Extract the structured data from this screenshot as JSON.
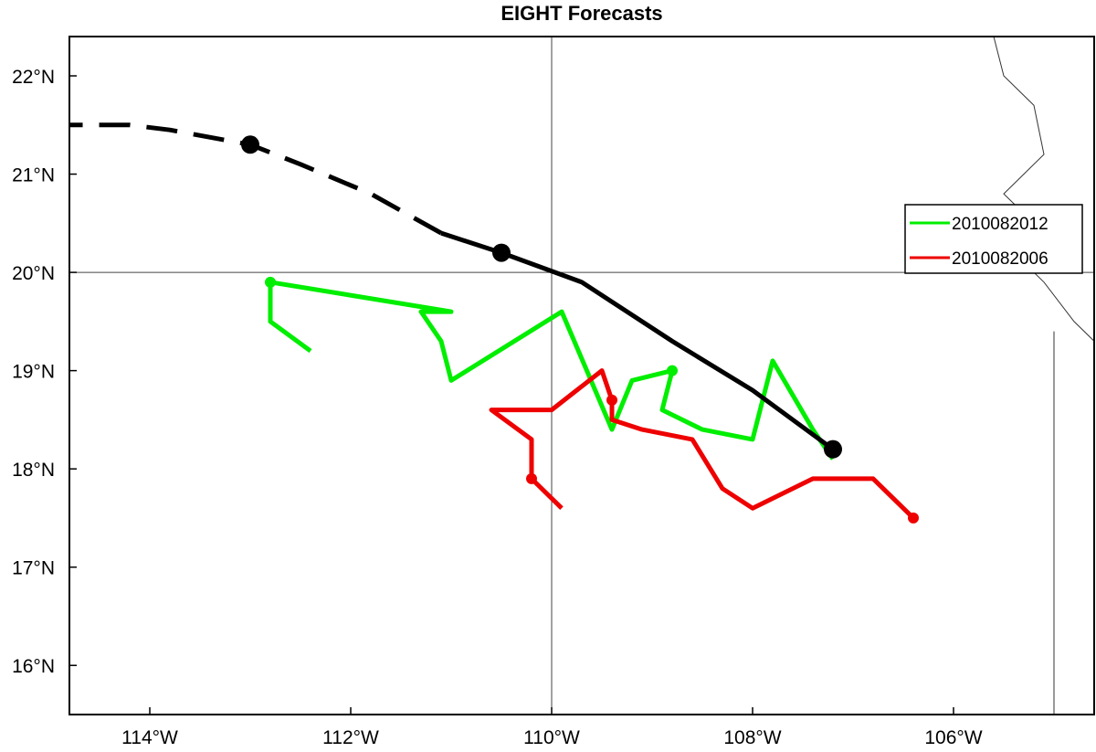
{
  "title": "EIGHT Forecasts",
  "axes": {
    "lon_range": [
      -114.8,
      -104.6
    ],
    "lat_range": [
      15.5,
      22.4
    ],
    "x_ticks": [
      {
        "value": -114,
        "label": "114°W"
      },
      {
        "value": -112,
        "label": "112°W"
      },
      {
        "value": -110,
        "label": "110°W"
      },
      {
        "value": -108,
        "label": "108°W"
      },
      {
        "value": -106,
        "label": "106°W"
      }
    ],
    "y_ticks": [
      {
        "value": 22,
        "label": "22°N"
      },
      {
        "value": 21,
        "label": "21°N"
      },
      {
        "value": 20,
        "label": "20°N"
      },
      {
        "value": 19,
        "label": "19°N"
      },
      {
        "value": 18,
        "label": "18°N"
      },
      {
        "value": 17,
        "label": "17°N"
      },
      {
        "value": 16,
        "label": "16°N"
      }
    ],
    "gridlines": {
      "lon": [
        -110
      ],
      "lat": [
        20
      ],
      "color": "#444444"
    }
  },
  "legend": {
    "placement": "right",
    "entries": [
      {
        "label": "2010082012",
        "color": "#00ee00"
      },
      {
        "label": "2010082006",
        "color": "#ee0000"
      }
    ]
  },
  "chart_data": {
    "type": "line",
    "title": "EIGHT Forecasts",
    "xlabel": "",
    "ylabel": "",
    "xlim": [
      -114.8,
      -104.6
    ],
    "ylim": [
      15.5,
      22.4
    ],
    "series": [
      {
        "color": "#000000",
        "style": "solid",
        "points": [
          [
            -107.2,
            18.2
          ],
          [
            -108.0,
            18.8
          ],
          [
            -108.8,
            19.3
          ],
          [
            -109.7,
            19.9
          ],
          [
            -110.5,
            20.2
          ],
          [
            -111.1,
            20.4
          ]
        ],
        "markers": [
          [
            -107.2,
            18.2
          ],
          [
            -110.5,
            20.2
          ]
        ]
      },
      {
        "color": "#000000",
        "style": "dashed",
        "points": [
          [
            -111.1,
            20.4
          ],
          [
            -111.8,
            20.8
          ],
          [
            -112.5,
            21.1
          ],
          [
            -113.0,
            21.3
          ],
          [
            -113.8,
            21.45
          ],
          [
            -114.2,
            21.5
          ],
          [
            -114.8,
            21.5
          ]
        ],
        "markers": [
          [
            -113.0,
            21.3
          ]
        ]
      },
      {
        "name": "2010082012",
        "color": "#00ee00",
        "style": "solid",
        "points": [
          [
            -112.4,
            19.2
          ],
          [
            -112.8,
            19.5
          ],
          [
            -112.8,
            19.9
          ],
          [
            -111.0,
            19.6
          ],
          [
            -111.3,
            19.6
          ],
          [
            -111.1,
            19.3
          ],
          [
            -111.0,
            18.9
          ],
          [
            -109.9,
            19.6
          ],
          [
            -109.4,
            18.4
          ],
          [
            -109.2,
            18.9
          ],
          [
            -108.8,
            19.0
          ],
          [
            -108.9,
            18.6
          ],
          [
            -108.5,
            18.4
          ],
          [
            -108.0,
            18.3
          ],
          [
            -107.8,
            19.1
          ],
          [
            -107.4,
            18.4
          ],
          [
            -107.2,
            18.1
          ]
        ],
        "markers": [
          [
            -112.8,
            19.9
          ],
          [
            -108.8,
            19.0
          ]
        ]
      },
      {
        "name": "2010082006",
        "color": "#ee0000",
        "style": "solid",
        "points": [
          [
            -109.9,
            17.6
          ],
          [
            -110.2,
            17.9
          ],
          [
            -110.2,
            18.3
          ],
          [
            -110.6,
            18.6
          ],
          [
            -110.0,
            18.6
          ],
          [
            -109.5,
            19.0
          ],
          [
            -109.4,
            18.7
          ],
          [
            -109.4,
            18.5
          ],
          [
            -109.1,
            18.4
          ],
          [
            -108.6,
            18.3
          ],
          [
            -108.3,
            17.8
          ],
          [
            -108.0,
            17.6
          ],
          [
            -107.4,
            17.9
          ],
          [
            -106.8,
            17.9
          ],
          [
            -106.4,
            17.5
          ]
        ],
        "markers": [
          [
            -110.2,
            17.9
          ],
          [
            -109.4,
            18.7
          ],
          [
            -106.4,
            17.5
          ]
        ]
      }
    ]
  },
  "coastline": [
    [
      -105.6,
      22.4
    ],
    [
      -105.5,
      22.0
    ],
    [
      -105.2,
      21.7
    ],
    [
      -105.1,
      21.2
    ],
    [
      -105.5,
      20.8
    ],
    [
      -105.3,
      20.6
    ],
    [
      -105.4,
      20.2
    ],
    [
      -105.1,
      19.9
    ],
    [
      -104.8,
      19.5
    ],
    [
      -104.6,
      19.3
    ]
  ],
  "border": [
    [
      -105.0,
      15.5
    ],
    [
      -105.0,
      19.4
    ]
  ]
}
